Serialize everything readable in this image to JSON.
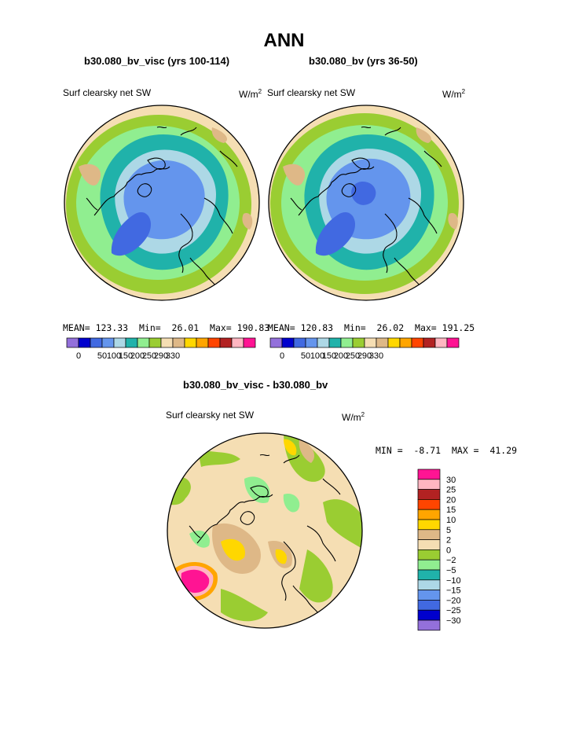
{
  "title": "ANN",
  "panels": [
    {
      "subtitle": "b30.080_bv_visc (yrs 100-114)",
      "variable": "Surf clearsky net SW",
      "units_base": "W/m",
      "units_exp": "2",
      "mean_label": "MEAN=",
      "mean": "123.33",
      "min_label": "Min=",
      "min": "26.01",
      "max_label": "Max=",
      "max": "190.83"
    },
    {
      "subtitle": "b30.080_bv (yrs 36-50)",
      "variable": "Surf clearsky net SW",
      "units_base": "W/m",
      "units_exp": "2",
      "mean_label": "MEAN=",
      "mean": "120.83",
      "min_label": "Min=",
      "min": "26.02",
      "max_label": "Max=",
      "max": "191.25"
    }
  ],
  "difference": {
    "subtitle": "b30.080_bv_visc - b30.080_bv",
    "variable": "Surf clearsky net SW",
    "units_base": "W/m",
    "units_exp": "2",
    "min_label": "MIN =",
    "min": "-8.71",
    "max_label": "MAX =",
    "max": "41.29"
  },
  "chart_data": [
    {
      "type": "heatmap",
      "projection": "north polar stereographic",
      "title": "b30.080_bv_visc (yrs 100-114)",
      "variable": "Surf clearsky net SW",
      "units": "W/m2",
      "mean": 123.33,
      "min": 26.01,
      "max": 190.83,
      "colorbar": {
        "orientation": "horizontal",
        "tick_labels": [
          "0",
          "50",
          "100",
          "150",
          "200",
          "250",
          "290",
          "330"
        ],
        "colors": [
          "#9370db",
          "#0000cd",
          "#4169e1",
          "#6495ed",
          "#add8e6",
          "#20b2aa",
          "#90ee90",
          "#9acd32",
          "#f5deb3",
          "#deb887",
          "#ffd700",
          "#ffa500",
          "#ff4500",
          "#b22222",
          "#ffb6c1",
          "#ff1493"
        ]
      }
    },
    {
      "type": "heatmap",
      "projection": "north polar stereographic",
      "title": "b30.080_bv (yrs 36-50)",
      "variable": "Surf clearsky net SW",
      "units": "W/m2",
      "mean": 120.83,
      "min": 26.02,
      "max": 191.25,
      "colorbar": {
        "orientation": "horizontal",
        "tick_labels": [
          "0",
          "50",
          "100",
          "150",
          "200",
          "250",
          "290",
          "330"
        ],
        "colors": [
          "#9370db",
          "#0000cd",
          "#4169e1",
          "#6495ed",
          "#add8e6",
          "#20b2aa",
          "#90ee90",
          "#9acd32",
          "#f5deb3",
          "#deb887",
          "#ffd700",
          "#ffa500",
          "#ff4500",
          "#b22222",
          "#ffb6c1",
          "#ff1493"
        ]
      }
    },
    {
      "type": "heatmap",
      "projection": "north polar stereographic",
      "title": "b30.080_bv_visc - b30.080_bv",
      "variable": "Surf clearsky net SW",
      "units": "W/m2",
      "min": -8.71,
      "max": 41.29,
      "colorbar": {
        "orientation": "vertical",
        "tick_labels": [
          "30",
          "25",
          "20",
          "15",
          "10",
          "5",
          "2",
          "0",
          "-2",
          "-5",
          "-10",
          "-15",
          "-20",
          "-25",
          "-30"
        ],
        "colors": [
          "#ff1493",
          "#ffb6c1",
          "#b22222",
          "#ff4500",
          "#ffa500",
          "#ffd700",
          "#deb887",
          "#f5deb3",
          "#9acd32",
          "#90ee90",
          "#20b2aa",
          "#add8e6",
          "#6495ed",
          "#4169e1",
          "#0000cd",
          "#9370db"
        ]
      }
    }
  ]
}
